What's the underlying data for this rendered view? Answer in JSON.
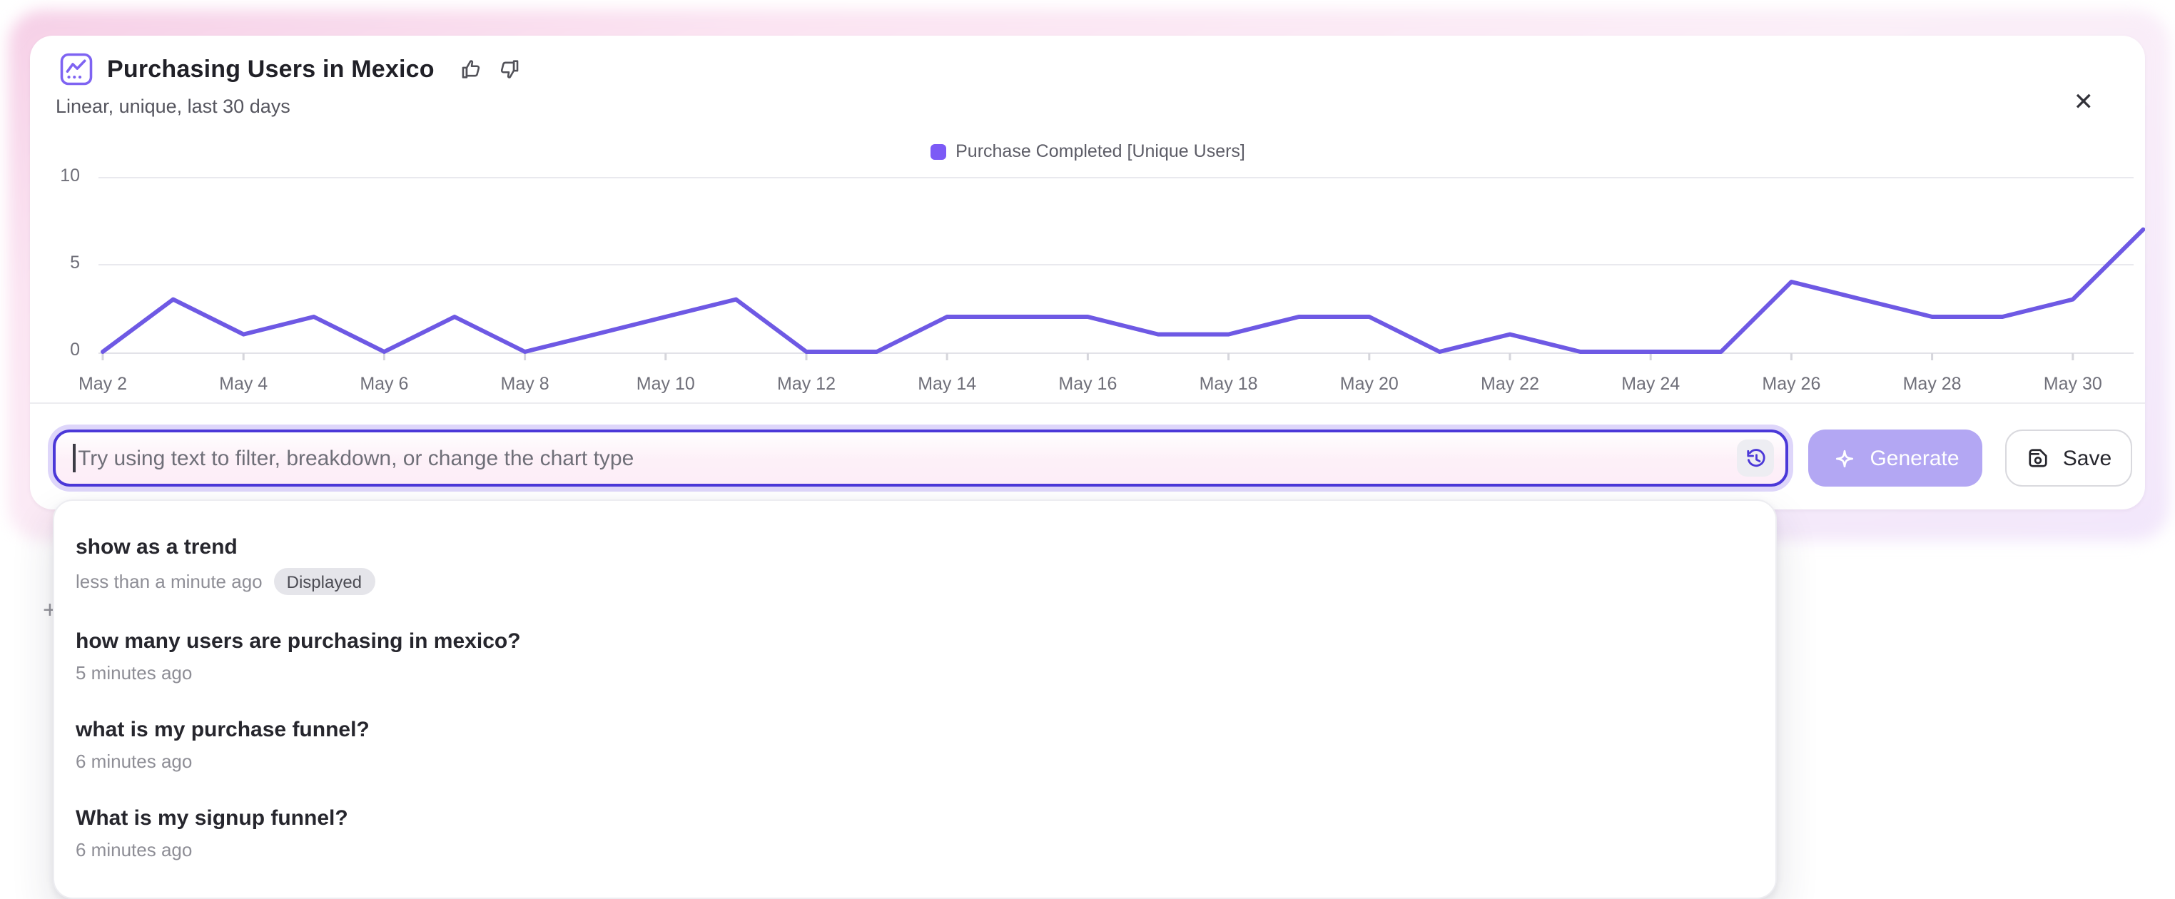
{
  "window": {
    "close_glyph": "✕",
    "plus_glyph": "+"
  },
  "header": {
    "title": "Purchasing Users in Mexico",
    "subtitle": "Linear, unique, last 30 days"
  },
  "chart_data": {
    "type": "line",
    "title": "Purchasing Users in Mexico",
    "x": [
      "May 2",
      "May 3",
      "May 4",
      "May 5",
      "May 6",
      "May 7",
      "May 8",
      "May 9",
      "May 10",
      "May 11",
      "May 12",
      "May 13",
      "May 14",
      "May 15",
      "May 16",
      "May 17",
      "May 18",
      "May 19",
      "May 20",
      "May 21",
      "May 22",
      "May 23",
      "May 24",
      "May 25",
      "May 26",
      "May 27",
      "May 28",
      "May 29",
      "May 30",
      "May 31"
    ],
    "series": [
      {
        "name": "Purchase Completed [Unique Users]",
        "color": "#6e59e4",
        "legend_color": "#7c5af6",
        "values": [
          0,
          3,
          1,
          2,
          0,
          2,
          0,
          1,
          2,
          3,
          0,
          0,
          2,
          2,
          2,
          1,
          1,
          2,
          2,
          0,
          1,
          0,
          0,
          0,
          4,
          3,
          2,
          2,
          3,
          7
        ]
      }
    ],
    "x_tick_labels": [
      "May 2",
      "May 4",
      "May 6",
      "May 8",
      "May 10",
      "May 12",
      "May 14",
      "May 16",
      "May 18",
      "May 20",
      "May 22",
      "May 24",
      "May 26",
      "May 28",
      "May 30"
    ],
    "yticks": [
      "0",
      "5",
      "10"
    ],
    "ylim": [
      0,
      10
    ],
    "grid": "horizontal",
    "legend_position": "top-center"
  },
  "ai_bar": {
    "placeholder": "Try using text to filter, breakdown, or change the chart type",
    "generate_label": "Generate",
    "save_label": "Save"
  },
  "history_dropdown": {
    "items": [
      {
        "query": "show as a trend",
        "time": "less than a minute ago",
        "badge": "Displayed"
      },
      {
        "query": "how many users are purchasing in mexico?",
        "time": "5 minutes ago"
      },
      {
        "query": "what is my purchase funnel?",
        "time": "6 minutes ago"
      },
      {
        "query": "What is my signup funnel?",
        "time": "6 minutes ago"
      }
    ]
  }
}
